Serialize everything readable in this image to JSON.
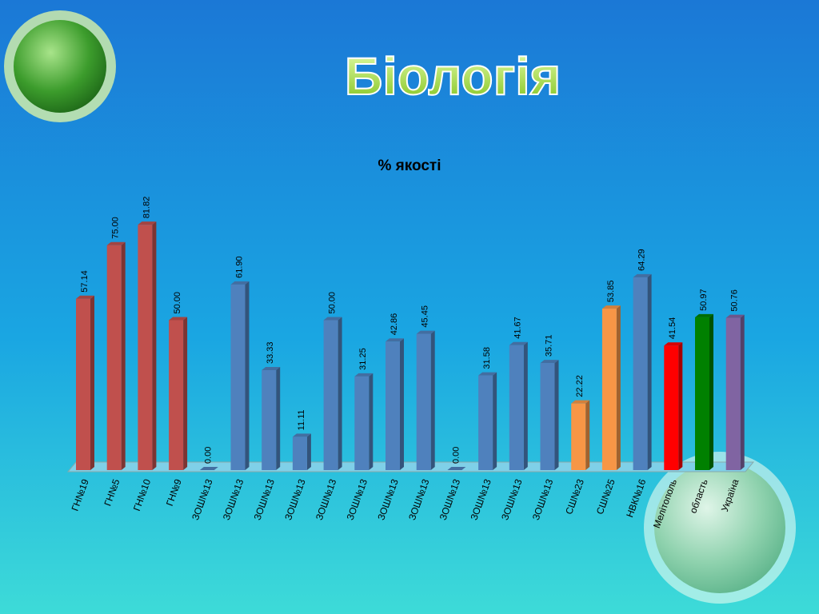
{
  "chart_data": {
    "type": "bar",
    "slide_title": "Біологія",
    "title": "% якості",
    "categories": [
      "ГН№19",
      "ГН№5",
      "ГН№10",
      "ГН№9",
      "ЗОШ№13",
      "ЗОШ№13",
      "ЗОШ№13",
      "ЗОШ№13",
      "ЗОШ№13",
      "ЗОШ№13",
      "ЗОШ№13",
      "ЗОШ№13",
      "ЗОШ№13",
      "ЗОШ№13",
      "ЗОШ№13",
      "ЗОШ№13",
      "СШ№23",
      "СШ№25",
      "НВК№16",
      "Мелітополь",
      "область",
      "Україна"
    ],
    "values": [
      57.14,
      75,
      81.82,
      50,
      0,
      61.9,
      33.33,
      11.11,
      50,
      31.25,
      42.86,
      45.45,
      0,
      31.58,
      41.67,
      35.71,
      22.22,
      53.85,
      64.29,
      41.54,
      50.97,
      50.76
    ],
    "value_labels": [
      "57.14",
      "75.00",
      "81.82",
      "50.00",
      "0.00",
      "61.90",
      "33.33",
      "11.11",
      "50.00",
      "31.25",
      "42.86",
      "45.45",
      "0.00",
      "31.58",
      "41.67",
      "35.71",
      "22.22",
      "53.85",
      "64.29",
      "41.54",
      "50.97",
      "50.76"
    ],
    "colors": [
      "#c0504d",
      "#c0504d",
      "#c0504d",
      "#c0504d",
      "#4f81bd",
      "#4f81bd",
      "#4f81bd",
      "#4f81bd",
      "#4f81bd",
      "#4f81bd",
      "#4f81bd",
      "#4f81bd",
      "#4f81bd",
      "#4f81bd",
      "#4f81bd",
      "#4f81bd",
      "#f79646",
      "#f79646",
      "#4f81bd",
      "#ff0000",
      "#008000",
      "#8064a2"
    ]
  }
}
